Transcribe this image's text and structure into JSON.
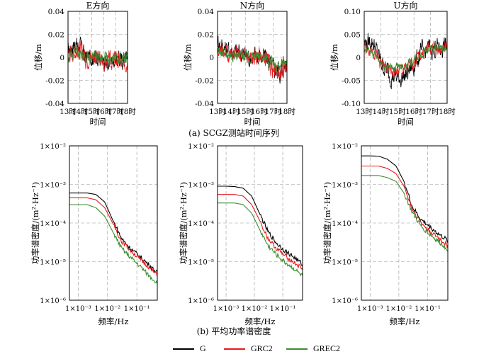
{
  "colors": {
    "G": "#000000",
    "GRC2": "#e8191b",
    "GREC2": "#3a8c2e",
    "grid": "#999999"
  },
  "captions": {
    "top": "(a) SCGZ测站时间序列",
    "bottom": "(b) 平均功率谱密度"
  },
  "legend": [
    {
      "name": "G",
      "color": "#000000"
    },
    {
      "name": "GRC2",
      "color": "#e8191b"
    },
    {
      "name": "GREC2",
      "color": "#3a8c2e"
    }
  ],
  "chart_data": [
    {
      "type": "line",
      "title": "E方向",
      "xlabel": "时间",
      "ylabel": "位移/m",
      "xticks": [
        "13时",
        "14时",
        "15时",
        "16时",
        "17时",
        "18时"
      ],
      "yticks": [
        0.04,
        0.02,
        0,
        -0.02,
        -0.04
      ],
      "ytick_labels": [
        "0.04",
        "0.02",
        "0",
        "-0.02",
        "-0.04"
      ],
      "xlim": [
        13,
        18
      ],
      "ylim": [
        -0.04,
        0.04
      ],
      "grid": true,
      "series": [
        {
          "name": "G",
          "x": [
            13,
            13.5,
            14,
            14.5,
            15,
            15.5,
            16,
            16.5,
            17,
            17.5,
            18
          ],
          "values": [
            0.005,
            0.012,
            0.01,
            0.0,
            0.001,
            0.002,
            -0.008,
            -0.003,
            -0.001,
            -0.003,
            0.002
          ],
          "noise": 0.006
        },
        {
          "name": "GRC2",
          "x": [
            13,
            13.5,
            14,
            14.5,
            15,
            15.5,
            16,
            16.5,
            17,
            17.5,
            18
          ],
          "values": [
            0.003,
            0.006,
            0.006,
            -0.001,
            0.001,
            0.0,
            -0.005,
            -0.004,
            -0.002,
            -0.006,
            -0.002
          ],
          "noise": 0.006
        },
        {
          "name": "GREC2",
          "x": [
            13,
            13.5,
            14,
            14.5,
            15,
            15.5,
            16,
            16.5,
            17,
            17.5,
            18
          ],
          "values": [
            0.002,
            0.004,
            0.003,
            0.001,
            0.001,
            0.001,
            -0.002,
            -0.001,
            0.0,
            -0.001,
            0.001
          ],
          "noise": 0.004
        }
      ]
    },
    {
      "type": "line",
      "title": "N方向",
      "xlabel": "时间",
      "ylabel": "位移/m",
      "xticks": [
        "13时",
        "14时",
        "15时",
        "16时",
        "17时",
        "18时"
      ],
      "yticks": [
        0.04,
        0.02,
        0,
        -0.02,
        -0.04
      ],
      "ytick_labels": [
        "0.04",
        "0.02",
        "0",
        "-0.02",
        "-0.04"
      ],
      "xlim": [
        13,
        18
      ],
      "ylim": [
        -0.04,
        0.04
      ],
      "grid": true,
      "series": [
        {
          "name": "G",
          "x": [
            13,
            13.5,
            14,
            14.5,
            15,
            15.5,
            16,
            16.5,
            17,
            17.5,
            18
          ],
          "values": [
            0.015,
            0.008,
            0.005,
            0.004,
            0.002,
            0.0,
            0.001,
            0.0,
            -0.01,
            -0.012,
            -0.004
          ],
          "noise": 0.007
        },
        {
          "name": "GRC2",
          "x": [
            13,
            13.5,
            14,
            14.5,
            15,
            15.5,
            16,
            16.5,
            17,
            17.5,
            18
          ],
          "values": [
            0.01,
            0.004,
            0.003,
            0.003,
            0.001,
            -0.001,
            0.002,
            -0.002,
            -0.012,
            -0.014,
            -0.005
          ],
          "noise": 0.006
        },
        {
          "name": "GREC2",
          "x": [
            13,
            13.5,
            14,
            14.5,
            15,
            15.5,
            16,
            16.5,
            17,
            17.5,
            18
          ],
          "values": [
            0.006,
            0.003,
            0.003,
            0.002,
            0.001,
            0.0,
            0.001,
            0.0,
            -0.006,
            -0.008,
            -0.002
          ],
          "noise": 0.004
        }
      ]
    },
    {
      "type": "line",
      "title": "U方向",
      "xlabel": "时间",
      "ylabel": "位移/m",
      "xticks": [
        "13时",
        "14时",
        "15时",
        "16时",
        "17时",
        "18时"
      ],
      "yticks": [
        0.1,
        0.05,
        0,
        -0.05,
        -0.1
      ],
      "ytick_labels": [
        "0.10",
        "0.05",
        "0",
        "-0.05",
        "-0.10"
      ],
      "xlim": [
        13,
        18
      ],
      "ylim": [
        -0.1,
        0.1
      ],
      "grid": true,
      "series": [
        {
          "name": "G",
          "x": [
            13,
            13.5,
            14,
            14.5,
            15,
            15.5,
            16,
            16.5,
            17,
            17.5,
            18
          ],
          "values": [
            0.03,
            0.035,
            -0.01,
            -0.035,
            -0.045,
            -0.04,
            -0.015,
            0.01,
            0.02,
            0.02,
            0.025
          ],
          "noise": 0.018
        },
        {
          "name": "GRC2",
          "x": [
            13,
            13.5,
            14,
            14.5,
            15,
            15.5,
            16,
            16.5,
            17,
            17.5,
            18
          ],
          "values": [
            0.02,
            0.02,
            -0.015,
            -0.03,
            -0.03,
            -0.025,
            -0.01,
            0.01,
            0.02,
            0.018,
            0.02
          ],
          "noise": 0.012
        },
        {
          "name": "GREC2",
          "x": [
            13,
            13.5,
            14,
            14.5,
            15,
            15.5,
            16,
            16.5,
            17,
            17.5,
            18
          ],
          "values": [
            0.015,
            0.012,
            -0.01,
            -0.02,
            -0.022,
            -0.018,
            -0.005,
            0.01,
            0.02,
            0.018,
            0.02
          ],
          "noise": 0.008
        }
      ]
    },
    {
      "type": "line",
      "xlabel": "频率/Hz",
      "ylabel": "功率谱密度/(m²·Hz⁻¹)",
      "xscale": "log",
      "yscale": "log",
      "xlim": [
        0.0005,
        0.5
      ],
      "ylim": [
        1e-06,
        0.01
      ],
      "grid": true,
      "xticks": [
        0.001,
        0.01,
        0.1
      ],
      "xtick_labels": [
        "1×10⁻³",
        "1×10⁻²",
        "1×10⁻¹"
      ],
      "yticks": [
        0.01,
        0.001,
        0.0001,
        1e-05,
        1e-06
      ],
      "ytick_labels": [
        "1×10⁻²",
        "1×10⁻³",
        "1×10⁻⁴",
        "1×10⁻⁵",
        "1×10⁻⁶"
      ],
      "series": [
        {
          "name": "G",
          "x": [
            0.0005,
            0.001,
            0.002,
            0.004,
            0.008,
            0.015,
            0.03,
            0.06,
            0.12,
            0.25,
            0.5
          ],
          "values": [
            0.0006,
            0.0006,
            0.0006,
            0.00055,
            0.00035,
            0.00012,
            4e-05,
            2.2e-05,
            1.4e-05,
            8.5e-06,
            5e-06
          ]
        },
        {
          "name": "GRC2",
          "x": [
            0.0005,
            0.001,
            0.002,
            0.004,
            0.008,
            0.015,
            0.03,
            0.06,
            0.12,
            0.25,
            0.5
          ],
          "values": [
            0.00045,
            0.00045,
            0.00045,
            0.0004,
            0.00025,
            0.0001,
            3.4e-05,
            2e-05,
            1.2e-05,
            7.5e-06,
            4.5e-06
          ]
        },
        {
          "name": "GREC2",
          "x": [
            0.0005,
            0.001,
            0.002,
            0.004,
            0.008,
            0.015,
            0.03,
            0.06,
            0.12,
            0.25,
            0.5
          ],
          "values": [
            0.0003,
            0.0003,
            0.0003,
            0.00025,
            0.00015,
            6e-05,
            2.2e-05,
            1.3e-05,
            8e-06,
            4.5e-06,
            2.8e-06
          ]
        }
      ]
    },
    {
      "type": "line",
      "xlabel": "频率/Hz",
      "ylabel": "功率谱密度/(m²·Hz⁻¹)",
      "xscale": "log",
      "yscale": "log",
      "xlim": [
        0.0005,
        0.5
      ],
      "ylim": [
        1e-06,
        0.01
      ],
      "grid": true,
      "xticks": [
        0.001,
        0.01,
        0.1
      ],
      "xtick_labels": [
        "1×10⁻³",
        "1×10⁻²",
        "1×10⁻¹"
      ],
      "yticks": [
        0.01,
        0.001,
        0.0001,
        1e-05,
        1e-06
      ],
      "ytick_labels": [
        "1×10⁻²",
        "1×10⁻³",
        "1×10⁻⁴",
        "1×10⁻⁵",
        "1×10⁻⁶"
      ],
      "series": [
        {
          "name": "G",
          "x": [
            0.0005,
            0.001,
            0.002,
            0.004,
            0.008,
            0.015,
            0.03,
            0.06,
            0.12,
            0.25,
            0.5
          ],
          "values": [
            0.0009,
            0.0009,
            0.00088,
            0.0008,
            0.0005,
            0.00018,
            6e-05,
            3e-05,
            1.9e-05,
            1.3e-05,
            8.5e-06
          ]
        },
        {
          "name": "GRC2",
          "x": [
            0.0005,
            0.001,
            0.002,
            0.004,
            0.008,
            0.015,
            0.03,
            0.06,
            0.12,
            0.25,
            0.5
          ],
          "values": [
            0.00055,
            0.00055,
            0.00055,
            0.0005,
            0.0003,
            0.00012,
            4e-05,
            2.2e-05,
            1.4e-05,
            9.5e-06,
            6.5e-06
          ]
        },
        {
          "name": "GREC2",
          "x": [
            0.0005,
            0.001,
            0.002,
            0.004,
            0.008,
            0.015,
            0.03,
            0.06,
            0.12,
            0.25,
            0.5
          ],
          "values": [
            0.00033,
            0.00033,
            0.00033,
            0.0003,
            0.00018,
            7e-05,
            2.6e-05,
            1.5e-05,
            9.5e-06,
            6.5e-06,
            4.2e-06
          ]
        }
      ]
    },
    {
      "type": "line",
      "xlabel": "频率/Hz",
      "ylabel": "功率谱密度/(m²·Hz⁻¹)",
      "xscale": "log",
      "yscale": "log",
      "xlim": [
        0.0005,
        0.5
      ],
      "ylim": [
        1e-06,
        0.01
      ],
      "grid": true,
      "xticks": [
        0.001,
        0.01,
        0.1
      ],
      "xtick_labels": [
        "1×10⁻³",
        "1×10⁻²",
        "1×10⁻¹"
      ],
      "yticks": [
        0.01,
        0.001,
        0.0001,
        1e-05,
        1e-06
      ],
      "ytick_labels": [
        "1×10⁻²",
        "1×10⁻³",
        "1×10⁻⁴",
        "1×10⁻⁵",
        "1×10⁻⁶"
      ],
      "series": [
        {
          "name": "G",
          "x": [
            0.0005,
            0.001,
            0.002,
            0.004,
            0.008,
            0.015,
            0.03,
            0.06,
            0.12,
            0.25,
            0.5
          ],
          "values": [
            0.0055,
            0.0055,
            0.0054,
            0.0045,
            0.003,
            0.0012,
            0.00025,
            0.00012,
            8e-05,
            5e-05,
            3.5e-05
          ]
        },
        {
          "name": "GRC2",
          "x": [
            0.0005,
            0.001,
            0.002,
            0.004,
            0.008,
            0.015,
            0.03,
            0.06,
            0.12,
            0.25,
            0.5
          ],
          "values": [
            0.003,
            0.003,
            0.003,
            0.0026,
            0.0019,
            0.0009,
            0.00022,
            0.0001,
            6e-05,
            4e-05,
            2.6e-05
          ]
        },
        {
          "name": "GREC2",
          "x": [
            0.0005,
            0.001,
            0.002,
            0.004,
            0.008,
            0.015,
            0.03,
            0.06,
            0.12,
            0.25,
            0.5
          ],
          "values": [
            0.0017,
            0.0017,
            0.0017,
            0.0015,
            0.0012,
            0.0006,
            0.00018,
            8e-05,
            5e-05,
            3.2e-05,
            2.1e-05
          ]
        }
      ]
    }
  ]
}
